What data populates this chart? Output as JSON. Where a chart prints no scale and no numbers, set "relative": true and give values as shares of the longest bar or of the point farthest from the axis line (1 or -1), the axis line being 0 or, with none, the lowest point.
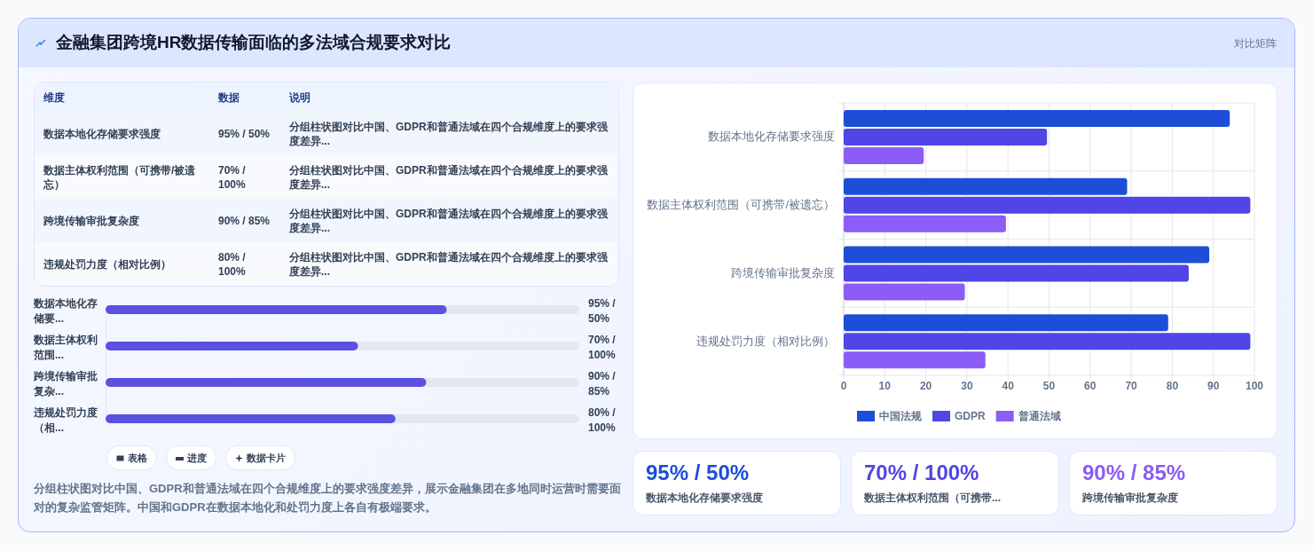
{
  "chart_data": [
    {
      "type": "other",
      "title": "金融集团跨境HR数据传输面临的多法域合规要求对比",
      "annotations": [
        "对比矩阵"
      ]
    },
    {
      "type": "other",
      "annotations": [
        "维度",
        "数据",
        "说明",
        "数据本地化存储要求强度",
        "95% / 50%",
        "分组柱状图对比中国、GDPR和普通法域在四个合规维度上的要求强度差异...",
        "数据主体权利范围（可携带/被遗忘）",
        "70% / 100%",
        "分组柱状图对比中国、GDPR和普通法域在四个合规维度上的要求强度差异...",
        "跨境传输审批复杂度",
        "90% / 85%",
        "分组柱状图对比中国、GDPR和普通法域在四个合规维度上的要求强度差异...",
        "违规处罚力度（相对比例）",
        "80% / 100%",
        "分组柱状图对比中国、GDPR和普通法域在四个合规维度上的要求强度差异..."
      ]
    },
    {
      "type": "bar",
      "orientation": "horizontal",
      "relative": true,
      "categories": [
        "数据本地化存储要...",
        "数据主体权利范围...",
        "跨境传输审批复杂...",
        "违规处罚力度（相..."
      ],
      "series": [
        {
          "color": "#5b50e0",
          "values": [
            1,
            0.74,
            0.94,
            0.85
          ]
        }
      ],
      "annotations": [
        "95% / 50%",
        "70% / 100%",
        "90% / 85%",
        "80% / 100%"
      ]
    },
    {
      "type": "other",
      "annotations": [
        "表格",
        "进度",
        "数据卡片",
        "分组柱状图对比中国、GDPR和普通法域在四个合规维度上的要求强度差异，展示金融集团在多地同时运营时需要面对的复杂监管矩阵。中国和GDPR在数据本地化和处罚力度上各自有极端要求。"
      ]
    },
    {
      "type": "bar",
      "orientation": "horizontal",
      "categories": [
        "数据本地化存储要求强度",
        "数据主体权利范围（可携带/被遗忘）",
        "跨境传输审批复杂度",
        "违规处罚力度（相对比例）"
      ],
      "series": [
        {
          "name": "中国法规",
          "color": "#1d4ed8",
          "values": [
            94,
            69,
            89,
            79
          ]
        },
        {
          "name": "GDPR",
          "color": "#4f46e5",
          "values": [
            49.5,
            99,
            84,
            99
          ]
        },
        {
          "name": "普通法域",
          "color": "#8b5cf6",
          "values": [
            19.5,
            39.5,
            29.5,
            34.5
          ]
        }
      ],
      "xlim": [
        0,
        100
      ],
      "xticks": [
        0,
        10,
        20,
        30,
        40,
        50,
        60,
        70,
        80,
        90,
        100
      ],
      "grid": true,
      "legend": "bottom"
    },
    {
      "type": "other",
      "colors": [
        "#1d4ed8",
        "#4f46e5",
        "#8b5cf6"
      ],
      "annotations": [
        "95% / 50%",
        "数据本地化存储要求强度",
        "70% / 100%",
        "数据主体权利范围（可携带...",
        "90% / 85%",
        "跨境传输审批复杂度"
      ]
    }
  ]
}
